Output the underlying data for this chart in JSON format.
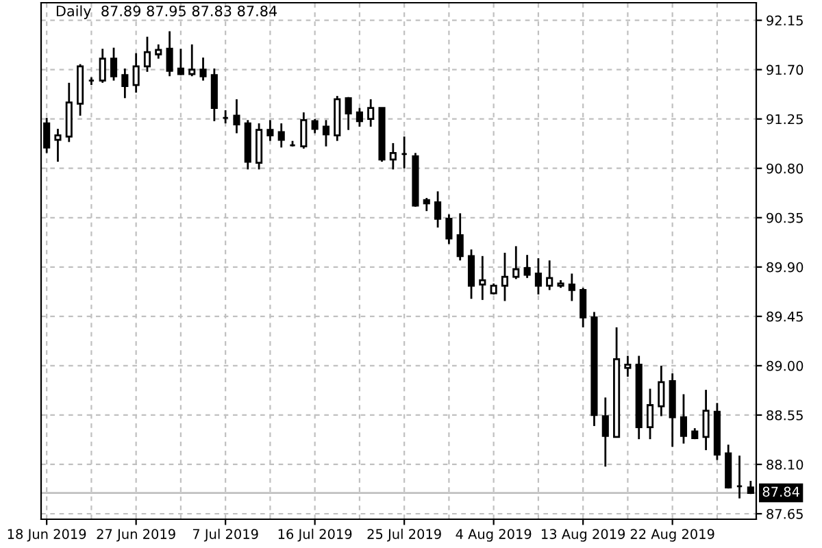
{
  "chart_data": {
    "type": "candlestick",
    "title": "Daily  87.89 87.95 87.83 87.84",
    "categories": [
      "18 Jun 2019",
      null,
      null,
      null,
      null,
      null,
      null,
      null,
      "27 Jun 2019",
      null,
      null,
      null,
      null,
      null,
      null,
      null,
      "7 Jul 2019",
      null,
      null,
      null,
      null,
      null,
      null,
      null,
      "16 Jul 2019",
      null,
      null,
      null,
      null,
      null,
      null,
      null,
      "25 Jul 2019",
      null,
      null,
      null,
      null,
      null,
      null,
      null,
      "4 Aug 2019",
      null,
      null,
      null,
      null,
      null,
      null,
      null,
      "13 Aug 2019",
      null,
      null,
      null,
      null,
      null,
      null,
      null,
      "22 Aug 2019",
      null,
      null,
      null,
      null,
      null,
      null,
      null
    ],
    "ohlc": [
      [
        91.21,
        91.26,
        90.94,
        90.99
      ],
      [
        91.06,
        91.16,
        90.86,
        91.1
      ],
      [
        91.09,
        91.58,
        91.04,
        91.4
      ],
      [
        91.39,
        91.75,
        91.28,
        91.73
      ],
      [
        91.6,
        91.63,
        91.56,
        91.6
      ],
      [
        91.6,
        91.89,
        91.58,
        91.8
      ],
      [
        91.8,
        91.9,
        91.6,
        91.64
      ],
      [
        91.65,
        91.71,
        91.44,
        91.55
      ],
      [
        91.56,
        91.85,
        91.49,
        91.73
      ],
      [
        91.73,
        92.0,
        91.68,
        91.86
      ],
      [
        91.84,
        91.93,
        91.8,
        91.88
      ],
      [
        91.89,
        92.05,
        91.64,
        91.69
      ],
      [
        91.71,
        91.89,
        91.65,
        91.66
      ],
      [
        91.66,
        91.93,
        91.64,
        91.7
      ],
      [
        91.7,
        91.81,
        91.6,
        91.64
      ],
      [
        91.65,
        91.71,
        91.23,
        91.35
      ],
      [
        91.26,
        91.33,
        91.21,
        91.26
      ],
      [
        91.28,
        91.43,
        91.12,
        91.2
      ],
      [
        91.21,
        91.24,
        90.79,
        90.86
      ],
      [
        90.85,
        91.21,
        90.79,
        91.15
      ],
      [
        91.15,
        91.24,
        91.05,
        91.1
      ],
      [
        91.13,
        91.21,
        90.99,
        91.06
      ],
      [
        91.01,
        91.05,
        91.0,
        91.01
      ],
      [
        91.0,
        91.31,
        90.98,
        91.24
      ],
      [
        91.23,
        91.25,
        91.12,
        91.16
      ],
      [
        91.18,
        91.24,
        91.0,
        91.11
      ],
      [
        91.1,
        91.46,
        91.05,
        91.43
      ],
      [
        91.44,
        91.45,
        91.15,
        91.3
      ],
      [
        91.31,
        91.35,
        91.18,
        91.23
      ],
      [
        91.25,
        91.43,
        91.18,
        91.35
      ],
      [
        91.35,
        91.35,
        90.86,
        90.88
      ],
      [
        90.88,
        91.03,
        90.79,
        90.94
      ],
      [
        90.93,
        91.09,
        90.8,
        90.93
      ],
      [
        90.91,
        90.94,
        90.45,
        90.46
      ],
      [
        90.51,
        90.53,
        90.41,
        90.48
      ],
      [
        90.49,
        90.59,
        90.26,
        90.34
      ],
      [
        90.34,
        90.38,
        90.11,
        90.16
      ],
      [
        90.19,
        90.39,
        89.96,
        90.0
      ],
      [
        90.0,
        90.06,
        89.61,
        89.73
      ],
      [
        89.74,
        90.0,
        89.6,
        89.78
      ],
      [
        89.66,
        89.75,
        89.65,
        89.73
      ],
      [
        89.73,
        90.03,
        89.59,
        89.81
      ],
      [
        89.81,
        90.09,
        89.79,
        89.88
      ],
      [
        89.89,
        90.01,
        89.8,
        89.83
      ],
      [
        89.84,
        89.98,
        89.65,
        89.73
      ],
      [
        89.73,
        89.96,
        89.69,
        89.8
      ],
      [
        89.73,
        89.78,
        89.71,
        89.75
      ],
      [
        89.74,
        89.84,
        89.59,
        89.69
      ],
      [
        89.69,
        89.71,
        89.35,
        89.44
      ],
      [
        89.44,
        89.49,
        88.45,
        88.55
      ],
      [
        88.54,
        88.71,
        88.08,
        88.36
      ],
      [
        88.35,
        89.35,
        88.35,
        89.06
      ],
      [
        88.98,
        89.09,
        88.9,
        89.01
      ],
      [
        89.01,
        89.09,
        88.33,
        88.44
      ],
      [
        88.44,
        88.79,
        88.33,
        88.64
      ],
      [
        88.63,
        89.0,
        88.54,
        88.85
      ],
      [
        88.86,
        88.93,
        88.26,
        88.53
      ],
      [
        88.53,
        88.74,
        88.29,
        88.36
      ],
      [
        88.4,
        88.43,
        88.33,
        88.34
      ],
      [
        88.35,
        88.78,
        88.23,
        88.59
      ],
      [
        88.58,
        88.66,
        88.14,
        88.19
      ],
      [
        88.2,
        88.28,
        87.88,
        87.89
      ],
      [
        87.9,
        88.18,
        87.79,
        87.9
      ],
      [
        87.89,
        87.95,
        87.83,
        87.84
      ]
    ],
    "ylim": [
      87.6,
      92.31
    ],
    "yticks": [
      {
        "value": 87.65,
        "label": "87.65"
      },
      {
        "value": 88.1,
        "label": "88.10"
      },
      {
        "value": 88.55,
        "label": "88.55"
      },
      {
        "value": 89.0,
        "label": "89.00"
      },
      {
        "value": 89.45,
        "label": "89.45"
      },
      {
        "value": 89.9,
        "label": "89.90"
      },
      {
        "value": 90.35,
        "label": "90.35"
      },
      {
        "value": 90.8,
        "label": "90.80"
      },
      {
        "value": 91.25,
        "label": "91.25"
      },
      {
        "value": 91.7,
        "label": "91.70"
      },
      {
        "value": 92.15,
        "label": "92.15"
      }
    ],
    "ref_lines": [
      {
        "axis": "y",
        "value": 87.84,
        "label": "87.84",
        "color": "#c0c0c0"
      }
    ],
    "grid": true
  }
}
